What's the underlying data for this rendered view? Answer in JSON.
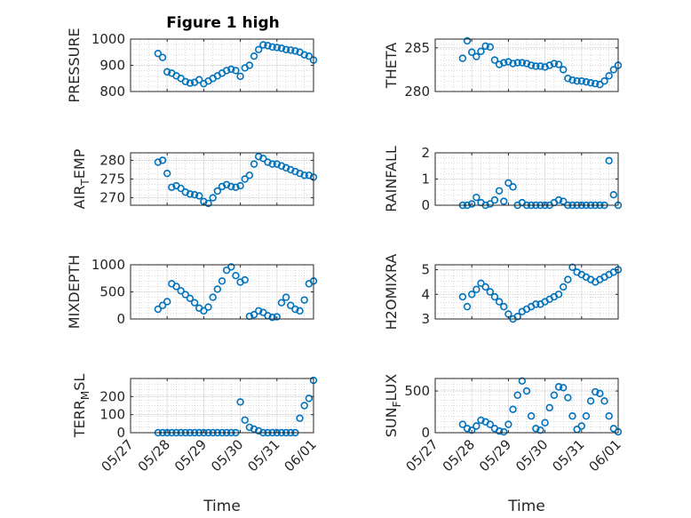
{
  "figure": {
    "title": "Figure 1 high"
  },
  "colors": {
    "marker": "#0072BD",
    "axis": "#262626",
    "grid": "#b0b0b0",
    "background": "#ffffff"
  },
  "x_tick_labels": [
    "05/27",
    "05/28",
    "05/29",
    "05/30",
    "05/31",
    "06/01"
  ],
  "chart_data": [
    {
      "type": "scatter",
      "ylabel": "PRESSURE",
      "ylim": [
        800,
        1000
      ],
      "yticks": [
        800,
        900,
        1000
      ],
      "grid": true,
      "marker": "circle",
      "series": [
        {
          "x": [
            "05/27 18:00",
            "05/27 21:00",
            "05/28 00:00",
            "05/28 03:00",
            "05/28 06:00",
            "05/28 09:00",
            "05/28 12:00",
            "05/28 15:00",
            "05/28 18:00",
            "05/28 21:00",
            "05/29 00:00",
            "05/29 03:00",
            "05/29 06:00",
            "05/29 09:00",
            "05/29 12:00",
            "05/29 15:00",
            "05/29 18:00",
            "05/29 21:00",
            "05/30 00:00",
            "05/30 03:00",
            "05/30 06:00",
            "05/30 09:00",
            "05/30 12:00",
            "05/30 15:00",
            "05/30 18:00",
            "05/30 21:00",
            "05/31 00:00",
            "05/31 03:00",
            "05/31 06:00",
            "05/31 09:00",
            "05/31 12:00",
            "05/31 15:00",
            "05/31 18:00",
            "05/31 21:00",
            "06/01 00:00"
          ],
          "values": [
            945,
            930,
            875,
            870,
            860,
            850,
            838,
            832,
            835,
            845,
            830,
            840,
            850,
            860,
            870,
            880,
            885,
            880,
            858,
            890,
            900,
            935,
            960,
            978,
            975,
            970,
            968,
            965,
            960,
            958,
            955,
            950,
            940,
            935,
            920
          ]
        }
      ]
    },
    {
      "type": "scatter",
      "ylabel": "THETA",
      "ylim": [
        280,
        286
      ],
      "yticks": [
        280,
        285
      ],
      "grid": true,
      "marker": "circle",
      "series": [
        {
          "x": [
            "05/27 18:00",
            "05/27 21:00",
            "05/28 00:00",
            "05/28 03:00",
            "05/28 06:00",
            "05/28 09:00",
            "05/28 12:00",
            "05/28 15:00",
            "05/28 18:00",
            "05/28 21:00",
            "05/29 00:00",
            "05/29 03:00",
            "05/29 06:00",
            "05/29 09:00",
            "05/29 12:00",
            "05/29 15:00",
            "05/29 18:00",
            "05/29 21:00",
            "05/30 00:00",
            "05/30 03:00",
            "05/30 06:00",
            "05/30 09:00",
            "05/30 12:00",
            "05/30 15:00",
            "05/30 18:00",
            "05/30 21:00",
            "05/31 00:00",
            "05/31 03:00",
            "05/31 06:00",
            "05/31 09:00",
            "05/31 12:00",
            "05/31 15:00",
            "05/31 18:00",
            "05/31 21:00",
            "06/01 00:00"
          ],
          "values": [
            283.8,
            285.8,
            284.5,
            284.0,
            284.6,
            285.2,
            285.1,
            283.6,
            283.1,
            283.3,
            283.4,
            283.2,
            283.3,
            283.3,
            283.2,
            283.0,
            282.9,
            282.9,
            282.8,
            283.0,
            283.2,
            283.1,
            282.5,
            281.5,
            281.3,
            281.2,
            281.2,
            281.1,
            281.0,
            280.9,
            280.8,
            281.2,
            281.8,
            282.5,
            283.0
          ]
        }
      ]
    },
    {
      "type": "scatter",
      "ylabel": "AIR_TEMP",
      "ylim": [
        268,
        282
      ],
      "yticks": [
        270,
        275,
        280
      ],
      "grid": true,
      "marker": "circle",
      "series": [
        {
          "x": [
            "05/27 18:00",
            "05/27 21:00",
            "05/28 00:00",
            "05/28 03:00",
            "05/28 06:00",
            "05/28 09:00",
            "05/28 12:00",
            "05/28 15:00",
            "05/28 18:00",
            "05/28 21:00",
            "05/29 00:00",
            "05/29 03:00",
            "05/29 06:00",
            "05/29 09:00",
            "05/29 12:00",
            "05/29 15:00",
            "05/29 18:00",
            "05/29 21:00",
            "05/30 00:00",
            "05/30 03:00",
            "05/30 06:00",
            "05/30 09:00",
            "05/30 12:00",
            "05/30 15:00",
            "05/30 18:00",
            "05/30 21:00",
            "05/31 00:00",
            "05/31 03:00",
            "05/31 06:00",
            "05/31 09:00",
            "05/31 12:00",
            "05/31 15:00",
            "05/31 18:00",
            "05/31 21:00",
            "06/01 00:00"
          ],
          "values": [
            279.5,
            280.0,
            276.5,
            272.8,
            273.2,
            272.5,
            271.5,
            271.0,
            270.8,
            270.5,
            269.0,
            268.5,
            270.0,
            271.8,
            273.0,
            273.5,
            273.0,
            272.8,
            273.2,
            275.0,
            276.0,
            279.0,
            281.0,
            280.5,
            279.5,
            279.0,
            279.0,
            278.5,
            278.0,
            277.5,
            277.0,
            276.5,
            276.0,
            276.0,
            275.5
          ]
        }
      ]
    },
    {
      "type": "scatter",
      "ylabel": "RAINFALL",
      "ylim": [
        0,
        2
      ],
      "yticks": [
        0,
        1,
        2
      ],
      "grid": true,
      "marker": "circle",
      "series": [
        {
          "x": [
            "05/27 18:00",
            "05/27 21:00",
            "05/28 00:00",
            "05/28 03:00",
            "05/28 06:00",
            "05/28 09:00",
            "05/28 12:00",
            "05/28 15:00",
            "05/28 18:00",
            "05/28 21:00",
            "05/29 00:00",
            "05/29 03:00",
            "05/29 06:00",
            "05/29 09:00",
            "05/29 12:00",
            "05/29 15:00",
            "05/29 18:00",
            "05/29 21:00",
            "05/30 00:00",
            "05/30 03:00",
            "05/30 06:00",
            "05/30 09:00",
            "05/30 12:00",
            "05/30 15:00",
            "05/30 18:00",
            "05/30 21:00",
            "05/31 00:00",
            "05/31 03:00",
            "05/31 06:00",
            "05/31 09:00",
            "05/31 12:00",
            "05/31 15:00",
            "05/31 18:00",
            "05/31 21:00",
            "06/01 00:00"
          ],
          "values": [
            0,
            0,
            0.05,
            0.3,
            0.1,
            0,
            0.05,
            0.2,
            0.55,
            0.15,
            0.85,
            0.7,
            0,
            0.1,
            0,
            0,
            0,
            0,
            0,
            0,
            0.1,
            0.2,
            0.15,
            0,
            0,
            0,
            0,
            0,
            0,
            0,
            0,
            0,
            1.7,
            0.4,
            0
          ]
        }
      ]
    },
    {
      "type": "scatter",
      "ylabel": "MIXDEPTH",
      "ylim": [
        0,
        1000
      ],
      "yticks": [
        0,
        500,
        1000
      ],
      "grid": true,
      "marker": "circle",
      "series": [
        {
          "x": [
            "05/27 18:00",
            "05/27 21:00",
            "05/28 00:00",
            "05/28 03:00",
            "05/28 06:00",
            "05/28 09:00",
            "05/28 12:00",
            "05/28 15:00",
            "05/28 18:00",
            "05/28 21:00",
            "05/29 00:00",
            "05/29 03:00",
            "05/29 06:00",
            "05/29 09:00",
            "05/29 12:00",
            "05/29 15:00",
            "05/29 18:00",
            "05/29 21:00",
            "05/30 00:00",
            "05/30 03:00",
            "05/30 06:00",
            "05/30 09:00",
            "05/30 12:00",
            "05/30 15:00",
            "05/30 18:00",
            "05/30 21:00",
            "05/31 00:00",
            "05/31 03:00",
            "05/31 06:00",
            "05/31 09:00",
            "05/31 12:00",
            "05/31 15:00",
            "05/31 18:00",
            "05/31 21:00",
            "06/01 00:00"
          ],
          "values": [
            180,
            250,
            320,
            650,
            600,
            520,
            450,
            380,
            300,
            200,
            150,
            220,
            400,
            550,
            700,
            900,
            960,
            800,
            680,
            720,
            50,
            80,
            150,
            120,
            60,
            30,
            40,
            300,
            400,
            250,
            180,
            150,
            350,
            650,
            700
          ]
        }
      ]
    },
    {
      "type": "scatter",
      "ylabel": "H2OMIXRA",
      "ylim": [
        3,
        5.2
      ],
      "yticks": [
        3,
        4,
        5
      ],
      "grid": true,
      "marker": "circle",
      "series": [
        {
          "x": [
            "05/27 18:00",
            "05/27 21:00",
            "05/28 00:00",
            "05/28 03:00",
            "05/28 06:00",
            "05/28 09:00",
            "05/28 12:00",
            "05/28 15:00",
            "05/28 18:00",
            "05/28 21:00",
            "05/29 00:00",
            "05/29 03:00",
            "05/29 06:00",
            "05/29 09:00",
            "05/29 12:00",
            "05/29 15:00",
            "05/29 18:00",
            "05/29 21:00",
            "05/30 00:00",
            "05/30 03:00",
            "05/30 06:00",
            "05/30 09:00",
            "05/30 12:00",
            "05/30 15:00",
            "05/30 18:00",
            "05/30 21:00",
            "05/31 00:00",
            "05/31 03:00",
            "05/31 06:00",
            "05/31 09:00",
            "05/31 12:00",
            "05/31 15:00",
            "05/31 18:00",
            "05/31 21:00",
            "06/01 00:00"
          ],
          "values": [
            3.9,
            3.5,
            4.0,
            4.2,
            4.45,
            4.3,
            4.1,
            3.9,
            3.7,
            3.5,
            3.2,
            3.0,
            3.1,
            3.3,
            3.4,
            3.5,
            3.6,
            3.6,
            3.7,
            3.8,
            3.9,
            4.0,
            4.3,
            4.6,
            5.1,
            4.9,
            4.8,
            4.7,
            4.6,
            4.5,
            4.6,
            4.7,
            4.8,
            4.9,
            5.0
          ]
        }
      ]
    },
    {
      "type": "scatter",
      "ylabel": "TERR_MSL",
      "ylim": [
        0,
        300
      ],
      "yticks": [
        0,
        100,
        200
      ],
      "grid": true,
      "marker": "circle",
      "series": [
        {
          "x": [
            "05/27 18:00",
            "05/27 21:00",
            "05/28 00:00",
            "05/28 03:00",
            "05/28 06:00",
            "05/28 09:00",
            "05/28 12:00",
            "05/28 15:00",
            "05/28 18:00",
            "05/28 21:00",
            "05/29 00:00",
            "05/29 03:00",
            "05/29 06:00",
            "05/29 09:00",
            "05/29 12:00",
            "05/29 15:00",
            "05/29 18:00",
            "05/29 21:00",
            "05/30 00:00",
            "05/30 03:00",
            "05/30 06:00",
            "05/30 09:00",
            "05/30 12:00",
            "05/30 15:00",
            "05/30 18:00",
            "05/30 21:00",
            "05/31 00:00",
            "05/31 03:00",
            "05/31 06:00",
            "05/31 09:00",
            "05/31 12:00",
            "05/31 15:00",
            "05/31 18:00",
            "05/31 21:00",
            "06/01 00:00"
          ],
          "values": [
            0,
            0,
            0,
            0,
            0,
            0,
            0,
            0,
            0,
            0,
            0,
            0,
            0,
            0,
            0,
            0,
            0,
            0,
            170,
            70,
            30,
            20,
            10,
            0,
            0,
            0,
            0,
            0,
            0,
            0,
            0,
            80,
            150,
            190,
            290
          ]
        }
      ]
    },
    {
      "type": "scatter",
      "ylabel": "SUN_FLUX",
      "ylim": [
        0,
        650
      ],
      "yticks": [
        0,
        500
      ],
      "grid": true,
      "marker": "circle",
      "series": [
        {
          "x": [
            "05/27 18:00",
            "05/27 21:00",
            "05/28 00:00",
            "05/28 03:00",
            "05/28 06:00",
            "05/28 09:00",
            "05/28 12:00",
            "05/28 15:00",
            "05/28 18:00",
            "05/28 21:00",
            "05/29 00:00",
            "05/29 03:00",
            "05/29 06:00",
            "05/29 09:00",
            "05/29 12:00",
            "05/29 15:00",
            "05/29 18:00",
            "05/29 21:00",
            "05/30 00:00",
            "05/30 03:00",
            "05/30 06:00",
            "05/30 09:00",
            "05/30 12:00",
            "05/30 15:00",
            "05/30 18:00",
            "05/30 21:00",
            "05/31 00:00",
            "05/31 03:00",
            "05/31 06:00",
            "05/31 09:00",
            "05/31 12:00",
            "05/31 15:00",
            "05/31 18:00",
            "05/31 21:00",
            "06/01 00:00"
          ],
          "values": [
            100,
            50,
            30,
            80,
            150,
            130,
            100,
            50,
            20,
            10,
            100,
            280,
            450,
            620,
            500,
            200,
            50,
            30,
            120,
            300,
            450,
            550,
            540,
            420,
            200,
            40,
            80,
            200,
            380,
            490,
            470,
            380,
            200,
            50,
            10
          ]
        }
      ]
    }
  ],
  "common": {
    "xlabel": "Time",
    "xlim": [
      "05/27 00:00",
      "06/01 00:00"
    ]
  }
}
